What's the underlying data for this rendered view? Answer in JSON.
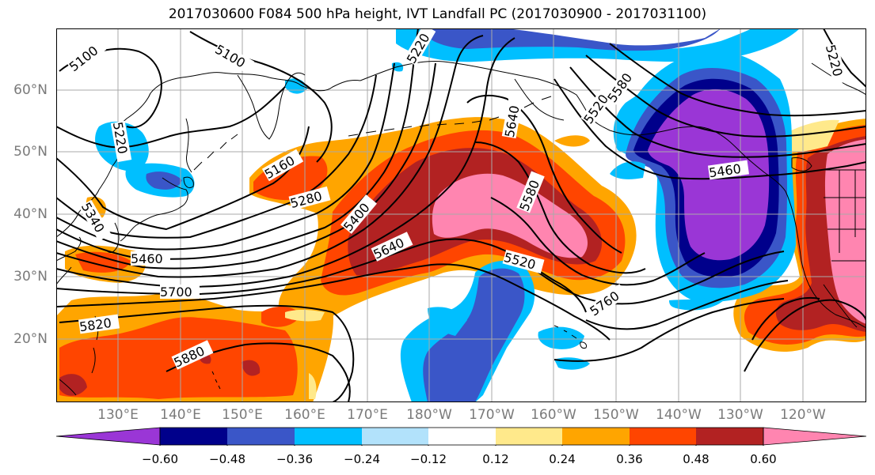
{
  "title": "2017030600 F084 500 hPa height, IVT Landfall PC (2017030900 - 2017031100)",
  "map": {
    "lat_labels": [
      "60°N",
      "50°N",
      "40°N",
      "30°N",
      "20°N"
    ],
    "lon_labels": [
      "130°E",
      "140°E",
      "150°E",
      "160°E",
      "170°E",
      "180°W",
      "170°W",
      "160°W",
      "150°W",
      "140°W",
      "130°W",
      "120°W"
    ],
    "contour_labels": [
      "5100",
      "5100",
      "5220",
      "5220",
      "5340",
      "5460",
      "5160",
      "5280",
      "5400",
      "5520",
      "5580",
      "5640",
      "5640",
      "5700",
      "5760",
      "5820",
      "5880",
      "5520",
      "5580",
      "5460",
      "5220"
    ],
    "colors": {
      "-0.60": "#9a36d6",
      "-0.48": "#00008b",
      "-0.36": "#3a56c8",
      "-0.24": "#00bfff",
      "-0.12": "#b2e2fb",
      "0": "#ffffff",
      "0.12": "#ffe98b",
      "0.24": "#ffa500",
      "0.36": "#ff4500",
      "0.48": "#b22222",
      "0.60": "#ff85b0"
    }
  },
  "colorbar": {
    "ticks": [
      "−0.60",
      "−0.48",
      "−0.36",
      "−0.24",
      "−0.12",
      "0.12",
      "0.24",
      "0.36",
      "0.48",
      "0.60"
    ],
    "colors": [
      "#9a36d6",
      "#00008b",
      "#3a56c8",
      "#00bfff",
      "#b2e2fb",
      "#ffffff",
      "#ffe98b",
      "#ffa500",
      "#ff4500",
      "#b22222",
      "#ff85b0",
      "#ff85b0"
    ]
  }
}
